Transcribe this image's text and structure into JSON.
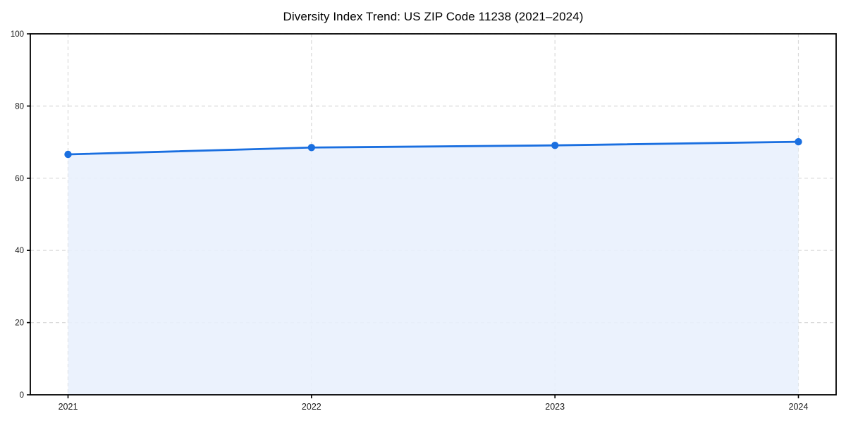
{
  "figure": {
    "background": "#ffffff"
  },
  "chart_data": {
    "type": "area",
    "title": "Diversity Index Trend: US ZIP Code 11238 (2021–2024)",
    "series_name": "Diversity Index",
    "categories": [
      "2021",
      "2022",
      "2023",
      "2024"
    ],
    "values": [
      66.6,
      68.5,
      69.1,
      70.1
    ],
    "xlabel": "",
    "ylabel": "",
    "ylim": [
      0,
      100
    ],
    "yticks": [
      0,
      20,
      40,
      60,
      80,
      100
    ],
    "grid": true,
    "grid_style": "dashed",
    "legend": "none",
    "colors": {
      "line": "#1a6fe0",
      "marker": "#1a6fe0",
      "fill": "#e8f0fd",
      "grid": "#d9d9d9",
      "spine": "#000000",
      "tick_label": "#1a1a1a",
      "title": "#000000"
    }
  }
}
